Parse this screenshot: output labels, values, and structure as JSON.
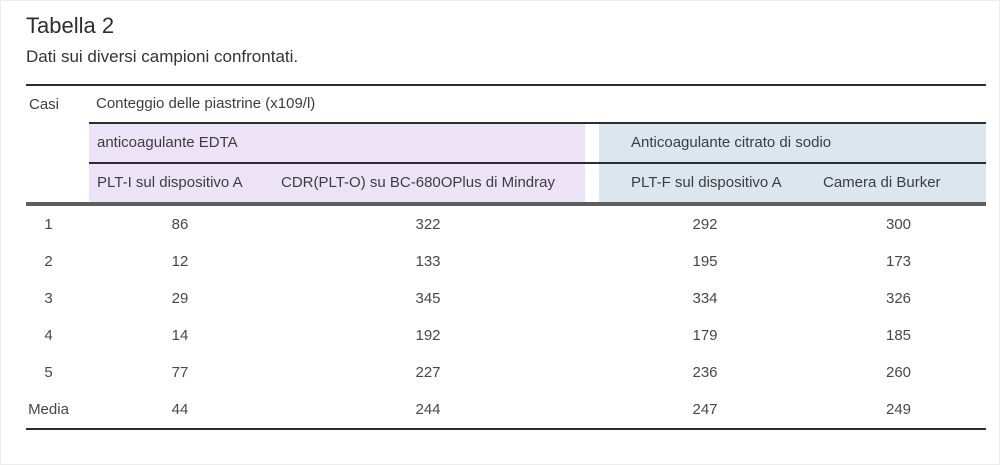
{
  "title": "Tabella 2",
  "subtitle": "Dati sui diversi campioni confrontati.",
  "table": {
    "corner_label": "Casi",
    "spanner_label": "Conteggio delle piastrine (x109/l)",
    "groups": [
      {
        "label": "anticoagulante EDTA"
      },
      {
        "label": "Anticoagulante citrato di sodio"
      }
    ],
    "columns": [
      "PLT-I sul dispositivo A",
      "CDR(PLT-O) su BC-680OPlus di Mindray",
      "PLT-F sul dispositivo A",
      "Camera di Burker"
    ],
    "rows": [
      {
        "caso": "1",
        "values": [
          "86",
          "322",
          "292",
          "300"
        ]
      },
      {
        "caso": "2",
        "values": [
          "12",
          "133",
          "195",
          "173"
        ]
      },
      {
        "caso": "3",
        "values": [
          "29",
          "345",
          "334",
          "326"
        ]
      },
      {
        "caso": "4",
        "values": [
          "14",
          "192",
          "179",
          "185"
        ]
      },
      {
        "caso": "5",
        "values": [
          "77",
          "227",
          "236",
          "260"
        ]
      },
      {
        "caso": "Media",
        "values": [
          "44",
          "244",
          "247",
          "249"
        ]
      }
    ]
  },
  "colors": {
    "edta_band": "#ece4f6",
    "citrato_band": "#dce6ef",
    "rule_dark": "#2d2d2d",
    "rule_heavy": "#5e5e5e"
  }
}
